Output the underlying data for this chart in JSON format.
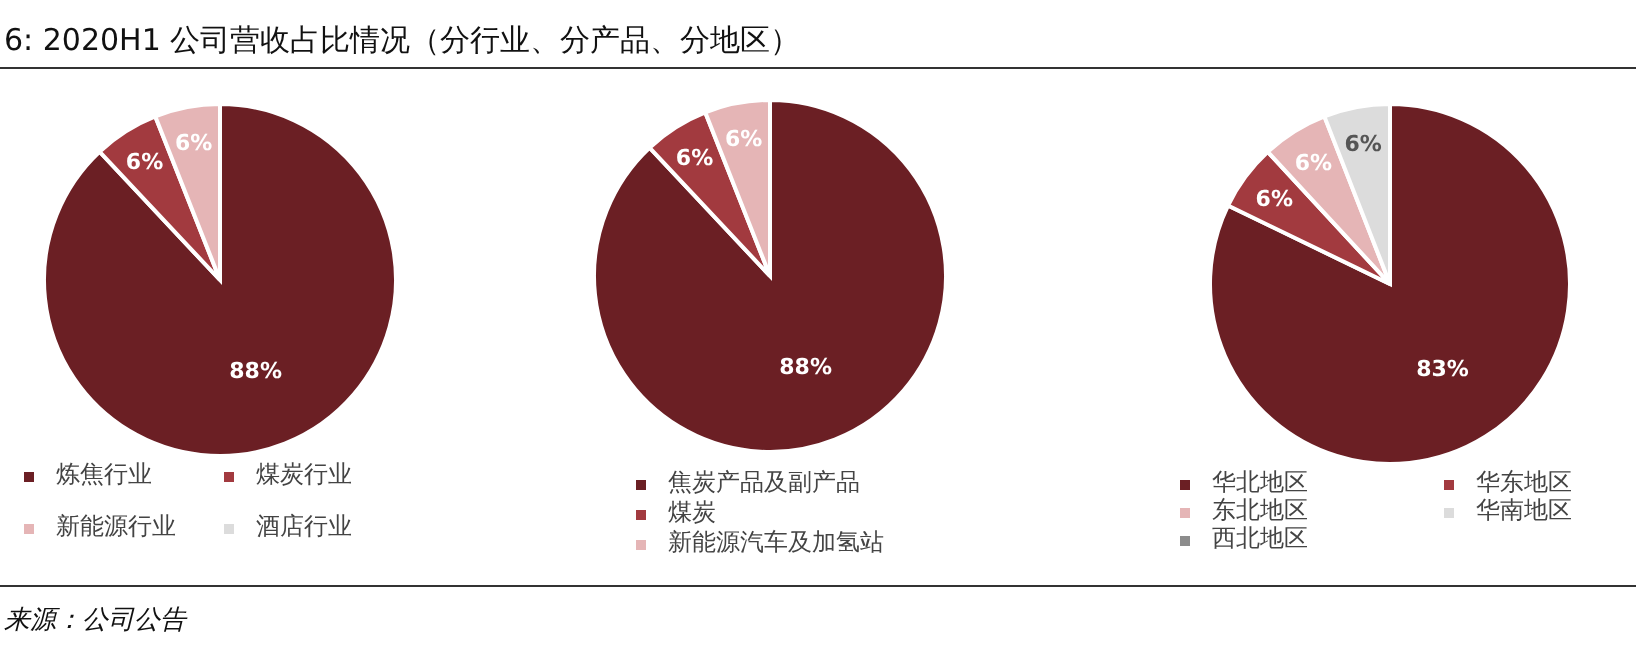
{
  "chart_data": [
    {
      "type": "pie",
      "title": "6: 2020H1 公司营收占比情况（分行业、分产品、分地区）",
      "annotations": [
        "来源：公司公告"
      ],
      "categories": [
        "炼焦行业",
        "煤炭行业",
        "新能源行业",
        "酒店行业"
      ],
      "values": [
        88,
        6,
        6,
        0
      ],
      "colors": [
        "#6b1f24",
        "#a23a3f",
        "#e5b5b6",
        "#dcdcdc"
      ],
      "value_labels": [
        "88%",
        "6%",
        "6%",
        null
      ],
      "legend": "bottom"
    },
    {
      "type": "pie",
      "categories": [
        "焦炭产品及副产品",
        "煤炭",
        "新能源汽车及加氢站"
      ],
      "values": [
        88,
        6,
        6
      ],
      "colors": [
        "#6b1f24",
        "#a23a3f",
        "#e5b5b6"
      ],
      "value_labels": [
        "88%",
        "6%",
        "6%"
      ],
      "legend": "bottom"
    },
    {
      "type": "pie",
      "categories": [
        "华北地区",
        "华东地区",
        "东北地区",
        "华南地区",
        "西北地区"
      ],
      "values": [
        83,
        6,
        6,
        6,
        0
      ],
      "colors": [
        "#6b1f24",
        "#a23a3f",
        "#e5b5b6",
        "#dcdcdc",
        "#8c8c8c"
      ],
      "value_labels": [
        "83%",
        "6%",
        "6%",
        "6%",
        null
      ],
      "legend": "bottom"
    }
  ]
}
